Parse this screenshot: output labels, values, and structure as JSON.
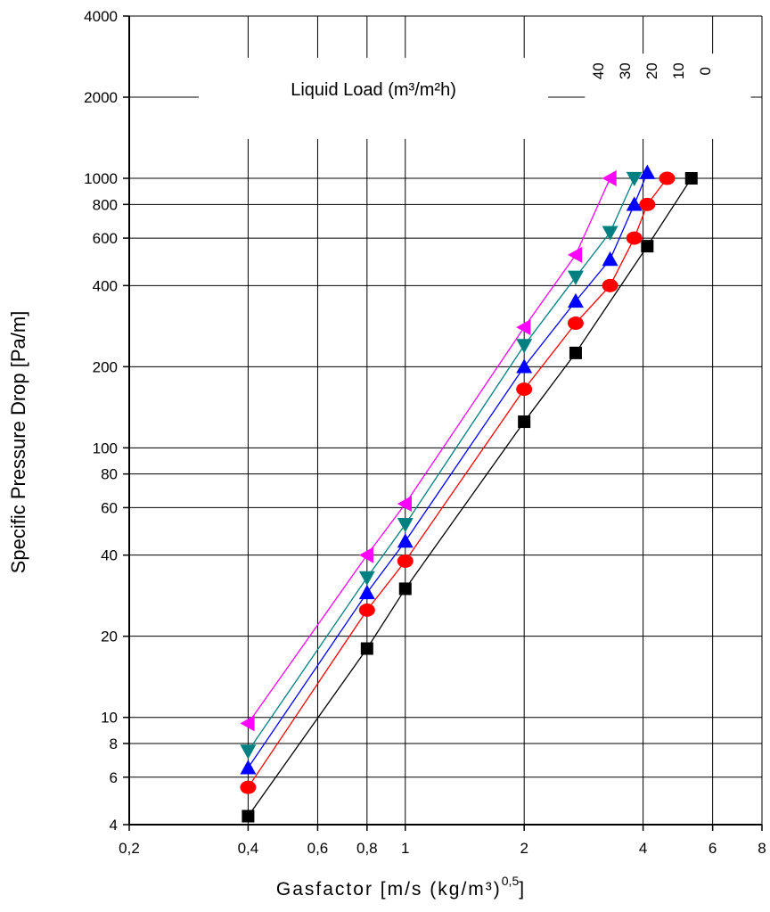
{
  "chart_data": {
    "type": "scatter",
    "xscale": "log",
    "yscale": "log",
    "xlim": [
      0.2,
      8
    ],
    "ylim": [
      4,
      4000
    ],
    "xlabel": "Gasfactor [m/s (kg/m³)",
    "xlabel_exponent": "0,5",
    "xlabel_close": "]",
    "ylabel": "Specific Pressure Drop [Pa/m]",
    "x_ticks": [
      {
        "value": 0.2,
        "label": "0,2"
      },
      {
        "value": 0.4,
        "label": "0,4"
      },
      {
        "value": 0.6,
        "label": "0,6"
      },
      {
        "value": 0.8,
        "label": "0,8"
      },
      {
        "value": 1,
        "label": "1"
      },
      {
        "value": 2,
        "label": "2"
      },
      {
        "value": 4,
        "label": "4"
      },
      {
        "value": 6,
        "label": "6"
      },
      {
        "value": 8,
        "label": "8"
      }
    ],
    "y_ticks": [
      {
        "value": 4,
        "label": "4"
      },
      {
        "value": 6,
        "label": "6"
      },
      {
        "value": 8,
        "label": "8"
      },
      {
        "value": 10,
        "label": "10"
      },
      {
        "value": 20,
        "label": "20"
      },
      {
        "value": 40,
        "label": "40"
      },
      {
        "value": 60,
        "label": "60"
      },
      {
        "value": 80,
        "label": "80"
      },
      {
        "value": 100,
        "label": "100"
      },
      {
        "value": 200,
        "label": "200"
      },
      {
        "value": 400,
        "label": "400"
      },
      {
        "value": 600,
        "label": "600"
      },
      {
        "value": 800,
        "label": "800"
      },
      {
        "value": 1000,
        "label": "1000"
      },
      {
        "value": 2000,
        "label": "2000"
      },
      {
        "value": 4000,
        "label": "4000"
      }
    ],
    "grid": true,
    "legend": {
      "title": "Liquid Load (m³/m²h)",
      "placement": "top"
    },
    "series": [
      {
        "name": "0",
        "color": "#000000",
        "marker": "square",
        "x": [
          0.4,
          0.8,
          1.0,
          2.0,
          2.7,
          4.1,
          5.3
        ],
        "y": [
          4.3,
          18,
          30,
          125,
          225,
          560,
          1000
        ]
      },
      {
        "name": "10",
        "color": "#ff0000",
        "marker": "circle",
        "x": [
          0.4,
          0.8,
          1.0,
          2.0,
          2.7,
          3.3,
          3.8,
          4.1,
          4.6
        ],
        "y": [
          5.5,
          25,
          38,
          165,
          290,
          400,
          600,
          800,
          1000
        ]
      },
      {
        "name": "20",
        "color": "#0000ff",
        "marker": "triangle-up",
        "x": [
          0.4,
          0.8,
          1.0,
          2.0,
          2.7,
          3.3,
          3.8,
          4.1
        ],
        "y": [
          6.5,
          29,
          45,
          200,
          350,
          500,
          800,
          1050
        ]
      },
      {
        "name": "30",
        "color": "#008080",
        "marker": "triangle-down",
        "x": [
          0.4,
          0.8,
          1.0,
          2.0,
          2.7,
          3.3,
          3.8
        ],
        "y": [
          7.5,
          33,
          52,
          240,
          430,
          630,
          1000
        ]
      },
      {
        "name": "40",
        "color": "#ff00ff",
        "marker": "triangle-left",
        "x": [
          0.4,
          0.8,
          1.0,
          2.0,
          2.7,
          3.3
        ],
        "y": [
          9.5,
          40,
          62,
          280,
          520,
          1000
        ]
      }
    ]
  }
}
